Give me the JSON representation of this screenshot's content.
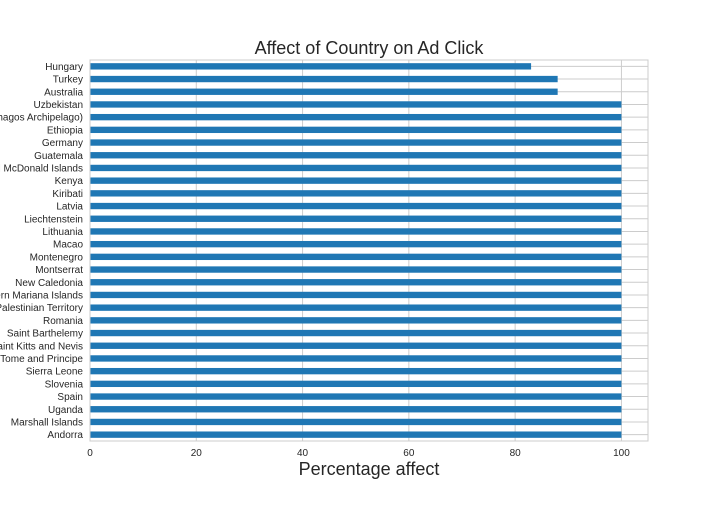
{
  "chart_data": {
    "type": "bar",
    "orientation": "horizontal",
    "title": "Affect of Country on Ad Click",
    "xlabel": "Percentage affect",
    "ylabel": "",
    "xlim": [
      0,
      105
    ],
    "xticks": [
      0,
      20,
      40,
      60,
      80,
      100
    ],
    "grid": true,
    "bar_color": "#1f77b4",
    "categories": [
      "Hungary",
      "Turkey",
      "Australia",
      "Uzbekistan",
      "British Indian Ocean Territory (Chagos Archipelago)",
      "Ethiopia",
      "Germany",
      "Guatemala",
      "Heard Island and McDonald Islands",
      "Kenya",
      "Kiribati",
      "Latvia",
      "Liechtenstein",
      "Lithuania",
      "Macao",
      "Montenegro",
      "Montserrat",
      "New Caledonia",
      "Northern Mariana Islands",
      "Palestinian Territory",
      "Romania",
      "Saint Barthelemy",
      "Saint Kitts and Nevis",
      "Sao Tome and Principe",
      "Sierra Leone",
      "Slovenia",
      "Spain",
      "Uganda",
      "Marshall Islands",
      "Andorra"
    ],
    "values": [
      83,
      88,
      88,
      100,
      100,
      100,
      100,
      100,
      100,
      100,
      100,
      100,
      100,
      100,
      100,
      100,
      100,
      100,
      100,
      100,
      100,
      100,
      100,
      100,
      100,
      100,
      100,
      100,
      100,
      100
    ]
  }
}
